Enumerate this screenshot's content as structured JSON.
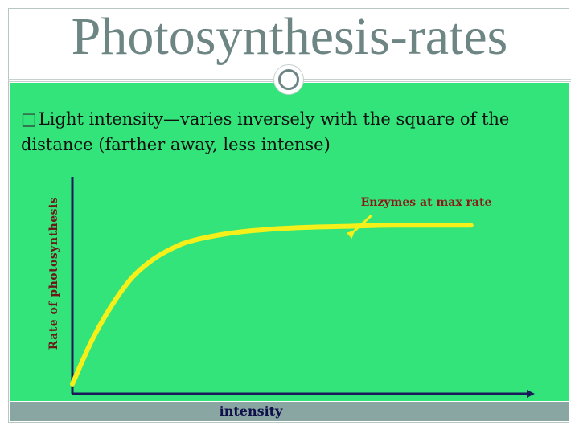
{
  "slide": {
    "title": "Photosynthesis-rates",
    "bullet_marker": "□",
    "bullet_text": "Light intensity—varies inversely with the square of the distance (farther away, less intense)"
  },
  "chart_data": {
    "type": "line",
    "xlabel": "intensity",
    "ylabel": "Rate of photosynthesis",
    "annotation": "Enzymes at max rate",
    "x": [
      0,
      0.05,
      0.1,
      0.15,
      0.2,
      0.25,
      0.3,
      0.4,
      0.5,
      0.6,
      0.7,
      0.8,
      1.0
    ],
    "values": [
      0.05,
      0.28,
      0.46,
      0.6,
      0.69,
      0.75,
      0.79,
      0.83,
      0.85,
      0.86,
      0.865,
      0.87,
      0.87
    ],
    "xlim": [
      0,
      1.15
    ],
    "ylim": [
      0,
      1.12
    ],
    "line_color": "#f5ef1a",
    "axis_color": "#1a1a5a"
  }
}
